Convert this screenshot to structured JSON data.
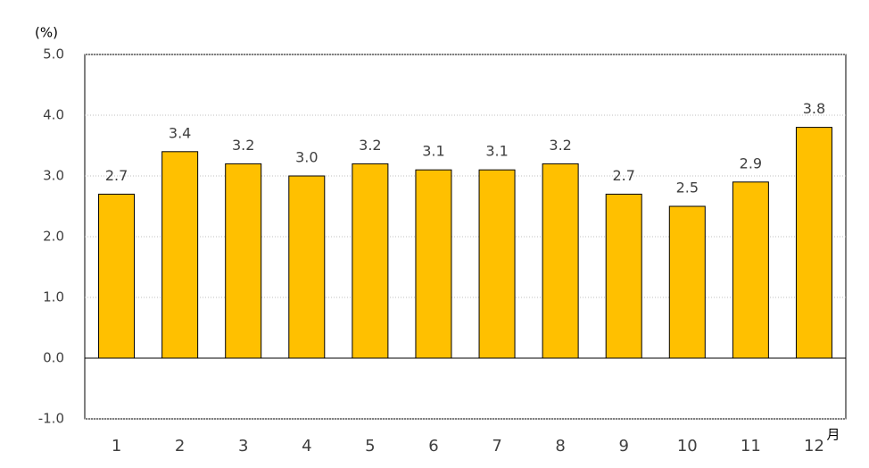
{
  "chart_data": {
    "type": "bar",
    "y_unit": "(%)",
    "x_unit": "月",
    "categories": [
      "1",
      "2",
      "3",
      "4",
      "5",
      "6",
      "7",
      "8",
      "9",
      "10",
      "11",
      "12"
    ],
    "values": [
      2.7,
      3.4,
      3.2,
      3.0,
      3.2,
      3.1,
      3.1,
      3.2,
      2.7,
      2.5,
      2.9,
      3.8
    ],
    "value_labels": [
      "2.7",
      "3.4",
      "3.2",
      "3.0",
      "3.2",
      "3.1",
      "3.1",
      "3.2",
      "2.7",
      "2.5",
      "2.9",
      "3.8"
    ],
    "color": "#ffc000",
    "ylim": [
      -1,
      5
    ],
    "yticks": [
      {
        "value": -1,
        "label": "-1.0"
      },
      {
        "value": 0,
        "label": "0.0"
      },
      {
        "value": 1,
        "label": "1.0"
      },
      {
        "value": 2,
        "label": "2.0"
      },
      {
        "value": 3,
        "label": "3.0"
      },
      {
        "value": 4,
        "label": "4.0"
      },
      {
        "value": 5,
        "label": "5.0"
      }
    ],
    "grid": true
  }
}
